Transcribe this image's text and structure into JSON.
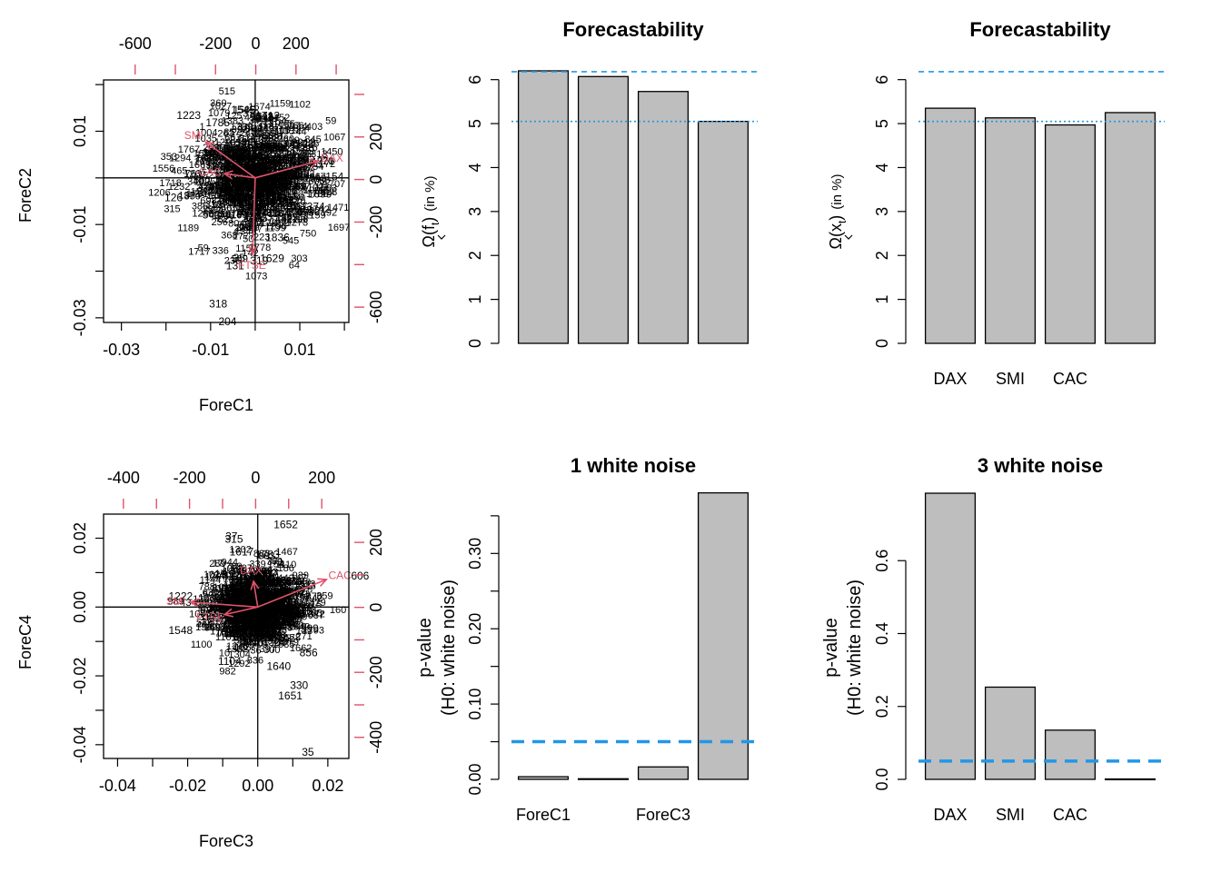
{
  "palette": {
    "red": "#DF536B",
    "blue": "#2297E6",
    "bar_fill": "#BEBEBE",
    "point_label": "#000000"
  },
  "chart_data": [
    {
      "type": "scatter",
      "subtype": "biplot",
      "title": "",
      "xlabel": "ForeC1",
      "ylabel": "ForeC2",
      "xlim": [
        -0.034,
        0.021
      ],
      "ylim": [
        -0.031,
        0.021
      ],
      "x_ticks": [
        -0.03,
        -0.02,
        -0.01,
        0.0,
        0.01,
        0.02
      ],
      "x_tick_labels": [
        "-0.03",
        "",
        "-0.01",
        "",
        "0.01",
        ""
      ],
      "y_ticks": [
        -0.03,
        -0.02,
        -0.01,
        0.0,
        0.01,
        0.02
      ],
      "y_tick_labels": [
        "-0.03",
        "",
        "-0.01",
        "",
        "0.01",
        ""
      ],
      "top_ticks": [
        -600,
        -400,
        -200,
        0,
        200,
        400
      ],
      "top_tick_labels": [
        "-600",
        "",
        "-200",
        "0",
        "200",
        ""
      ],
      "right_ticks": [
        -600,
        -400,
        -200,
        0,
        200,
        400
      ],
      "right_tick_labels": [
        "-600",
        "",
        "-200",
        "0",
        "200",
        ""
      ],
      "loading_range": [
        -757,
        463,
        -672,
        468
      ],
      "grid": false,
      "cloud": {
        "center": [
          0.0,
          0.0
        ],
        "spread": [
          0.0068,
          0.0058
        ]
      },
      "points": [
        {
          "label": "1545",
          "x": -0.0027,
          "y": 0.0146
        },
        {
          "label": "1223",
          "x": -0.0149,
          "y": 0.0134
        },
        {
          "label": "1712",
          "x": 0.0028,
          "y": 0.0133
        },
        {
          "label": "1754",
          "x": 0.0044,
          "y": 0.0121
        },
        {
          "label": "1785",
          "x": -0.0084,
          "y": 0.0118
        },
        {
          "label": "2913",
          "x": 0.0108,
          "y": 0.0076
        },
        {
          "label": "1529",
          "x": 0.0105,
          "y": 0.0058
        },
        {
          "label": "154",
          "x": 0.0178,
          "y": 0.0003
        },
        {
          "label": "1699",
          "x": 0.0145,
          "y": -0.0034
        },
        {
          "label": "374",
          "x": 0.0136,
          "y": -0.0062
        },
        {
          "label": "126",
          "x": -0.0183,
          "y": -0.0042
        },
        {
          "label": "35",
          "x": -0.0036,
          "y": -0.0172
        },
        {
          "label": "319",
          "x": 0.0009,
          "y": -0.0178
        },
        {
          "label": "1629",
          "x": 0.0038,
          "y": -0.0173
        },
        {
          "label": "131",
          "x": -0.0045,
          "y": -0.0188
        },
        {
          "label": "318",
          "x": -0.0083,
          "y": -0.027
        },
        {
          "label": "204",
          "x": -0.0062,
          "y": -0.0308
        },
        {
          "label": "1836",
          "x": 0.005,
          "y": -0.0128
        },
        {
          "label": "543",
          "x": -0.0098,
          "y": -0.0079
        }
      ],
      "arrows": [
        {
          "label": "SMI",
          "x": -0.0111,
          "y": 0.0077
        },
        {
          "label": "CAC",
          "x": -0.0069,
          "y": 0.0009
        },
        {
          "label": "DAX",
          "x": 0.0141,
          "y": 0.0036
        },
        {
          "label": "FTSE",
          "x": -0.0006,
          "y": -0.0164
        }
      ]
    },
    {
      "type": "bar",
      "title": "Forecastability",
      "xlabel": "",
      "ylabel": "Ω̂(f_t)  (in %)",
      "categories": [
        "",
        "",
        "",
        ""
      ],
      "values": [
        6.2,
        6.07,
        5.73,
        5.05
      ],
      "ylim": [
        0,
        6.2
      ],
      "y_ticks": [
        0,
        1,
        2,
        3,
        4,
        5,
        6
      ],
      "y_tick_labels": [
        "0",
        "1",
        "2",
        "3",
        "4",
        "5",
        "6"
      ],
      "reference_lines": [
        {
          "y": 6.18,
          "style": "dashed",
          "color": "#2297E6"
        },
        {
          "y": 5.05,
          "style": "dotted",
          "color": "#2297E6"
        }
      ],
      "grid": false
    },
    {
      "type": "bar",
      "title": "Forecastability",
      "xlabel": "",
      "ylabel": "Ω̂(x_t)  (in %)",
      "categories": [
        "DAX",
        "SMI",
        "CAC",
        ""
      ],
      "values": [
        5.35,
        5.13,
        4.97,
        5.25
      ],
      "ylim": [
        0,
        6.2
      ],
      "y_ticks": [
        0,
        1,
        2,
        3,
        4,
        5,
        6
      ],
      "y_tick_labels": [
        "0",
        "1",
        "2",
        "3",
        "4",
        "5",
        "6"
      ],
      "reference_lines": [
        {
          "y": 6.18,
          "style": "dashed",
          "color": "#2297E6"
        },
        {
          "y": 5.05,
          "style": "dotted",
          "color": "#2297E6"
        }
      ],
      "grid": false
    },
    {
      "type": "scatter",
      "subtype": "biplot",
      "title": "",
      "xlabel": "ForeC3",
      "ylabel": "ForeC4",
      "xlim": [
        -0.044,
        0.026
      ],
      "ylim": [
        -0.044,
        0.027
      ],
      "x_ticks": [
        -0.04,
        -0.03,
        -0.02,
        -0.01,
        0.0,
        0.01,
        0.02
      ],
      "x_tick_labels": [
        "-0.04",
        "",
        "-0.02",
        "",
        "0.00",
        "",
        "0.02"
      ],
      "y_ticks": [
        -0.04,
        -0.03,
        -0.02,
        -0.01,
        0.0,
        0.01,
        0.02
      ],
      "y_tick_labels": [
        "-0.04",
        "",
        "-0.02",
        "",
        "0.00",
        "",
        "0.02"
      ],
      "top_ticks": [
        -400,
        -300,
        -200,
        -100,
        0,
        100,
        200
      ],
      "top_tick_labels": [
        "-400",
        "",
        "-200",
        "",
        "0",
        "",
        "200"
      ],
      "right_ticks": [
        -400,
        -300,
        -200,
        -100,
        0,
        100,
        200
      ],
      "right_tick_labels": [
        "-400",
        "",
        "-200",
        "",
        "0",
        "",
        "200"
      ],
      "loading_range": [
        -460,
        282,
        -465,
        287
      ],
      "grid": false,
      "cloud": {
        "center": [
          0.0,
          0.0
        ],
        "spread": [
          0.0064,
          0.0056
        ]
      },
      "points": [
        {
          "label": "1652",
          "x": 0.008,
          "y": 0.024
        },
        {
          "label": "37",
          "x": -0.0075,
          "y": 0.0205
        },
        {
          "label": "315",
          "x": -0.0068,
          "y": 0.0197
        },
        {
          "label": "1783",
          "x": 0.0028,
          "y": 0.0152
        },
        {
          "label": "1617",
          "x": -0.0046,
          "y": 0.016
        },
        {
          "label": "606",
          "x": 0.0292,
          "y": 0.009
        },
        {
          "label": "1222",
          "x": -0.022,
          "y": 0.0031
        },
        {
          "label": "1548",
          "x": -0.022,
          "y": -0.0068
        },
        {
          "label": "1104",
          "x": -0.008,
          "y": -0.0158
        },
        {
          "label": "1640",
          "x": 0.006,
          "y": -0.0172
        },
        {
          "label": "856",
          "x": 0.0145,
          "y": -0.0133
        },
        {
          "label": "599",
          "x": 0.0148,
          "y": -0.0063
        },
        {
          "label": "330",
          "x": 0.0118,
          "y": -0.0228
        },
        {
          "label": "1651",
          "x": 0.0093,
          "y": -0.0258
        },
        {
          "label": "35",
          "x": 0.0143,
          "y": -0.0421
        }
      ],
      "arrows": [
        {
          "label": "SMI",
          "x": -0.0192,
          "y": 0.0014
        },
        {
          "label": "FTSE",
          "x": -0.0095,
          "y": -0.0022
        },
        {
          "label": "DAX",
          "x": -0.0012,
          "y": 0.0075
        },
        {
          "label": "CAC",
          "x": 0.0196,
          "y": 0.008
        }
      ]
    },
    {
      "type": "bar",
      "title": "1 white noise",
      "xlabel": "",
      "ylabel": "p-value\n(H0: white noise)",
      "categories": [
        "ForeC1",
        "",
        "ForeC3",
        ""
      ],
      "values": [
        0.0035,
        0.0008,
        0.0165,
        0.3805
      ],
      "ylim": [
        0,
        0.38
      ],
      "y_ticks": [
        0.0,
        0.05,
        0.1,
        0.15,
        0.2,
        0.25,
        0.3,
        0.35
      ],
      "y_tick_labels": [
        "0.00",
        "",
        "0.10",
        "",
        "0.20",
        "",
        "0.30",
        ""
      ],
      "reference_lines": [
        {
          "y": 0.05,
          "style": "thick-dashed",
          "color": "#2297E6"
        }
      ],
      "grid": false
    },
    {
      "type": "bar",
      "title": "3 white noise",
      "xlabel": "",
      "ylabel": "p-value\n(H0: white noise)",
      "categories": [
        "DAX",
        "SMI",
        "CAC",
        ""
      ],
      "values": [
        0.785,
        0.253,
        0.135,
        0.001
      ],
      "ylim": [
        0,
        0.785
      ],
      "y_ticks": [
        0.0,
        0.2,
        0.4,
        0.6
      ],
      "y_tick_labels": [
        "0.0",
        "0.2",
        "0.4",
        "0.6"
      ],
      "reference_lines": [
        {
          "y": 0.05,
          "style": "thick-dashed",
          "color": "#2297E6"
        }
      ],
      "grid": false
    }
  ]
}
